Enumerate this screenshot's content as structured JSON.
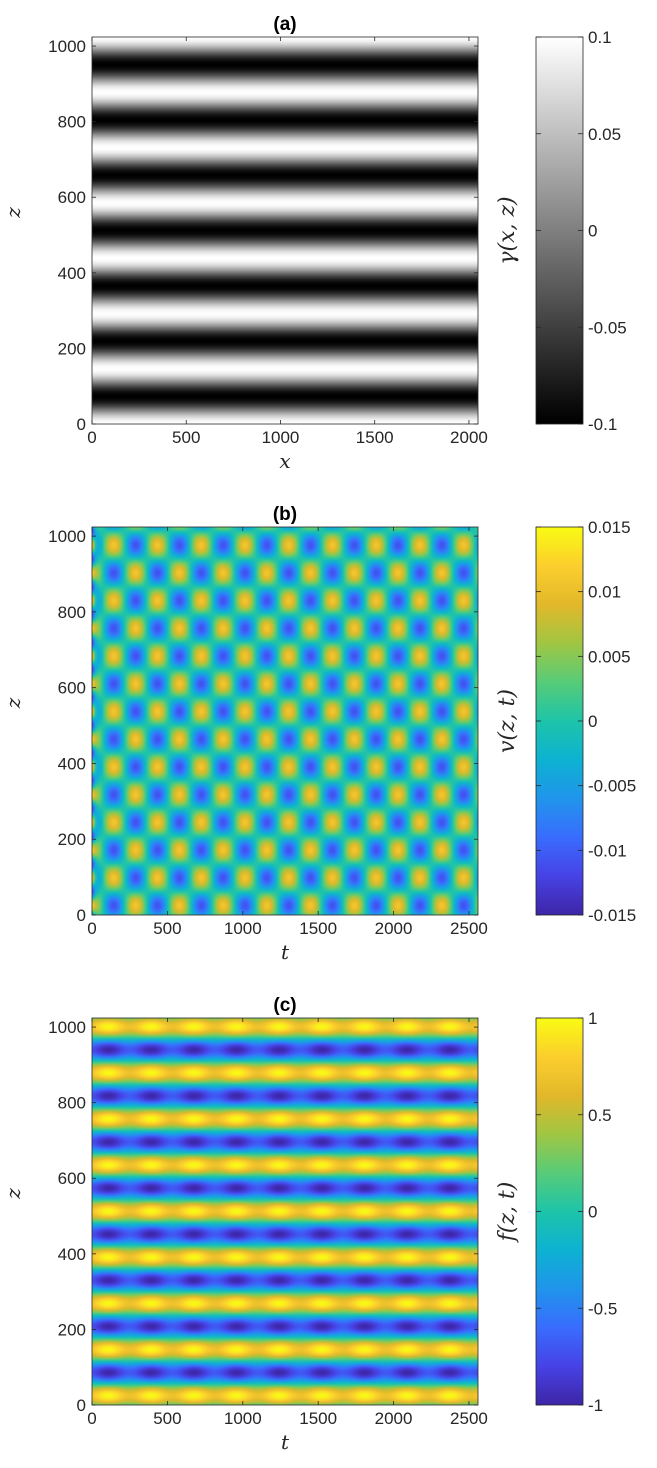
{
  "chart_data": [
    {
      "type": "heatmap",
      "title": "(a)",
      "xlabel": "x",
      "ylabel": "z",
      "colorbar_label": "γ(x, z)",
      "colormap": "gray",
      "xlim": [
        0,
        2048
      ],
      "ylim": [
        0,
        1024
      ],
      "xticks": [
        0,
        500,
        1000,
        1500,
        2000
      ],
      "yticks": [
        0,
        200,
        400,
        600,
        800,
        1000
      ],
      "clim": [
        -0.1,
        0.1
      ],
      "cticks": [
        -0.1,
        -0.05,
        0,
        0.05,
        0.1
      ],
      "cticklabels": [
        "-0.1",
        "-0.05",
        "0",
        "0.05",
        "0.1"
      ],
      "field": {
        "description_formula": "gamma = A*cos(2*pi*z/period_z + phase)",
        "amplitude": 0.1,
        "period_z": 146.3,
        "phase": 0,
        "varies_with_x": false
      }
    },
    {
      "type": "heatmap",
      "title": "(b)",
      "xlabel": "t",
      "ylabel": "z",
      "colorbar_label": "v(z, t)",
      "colormap": "parula",
      "xlim": [
        0,
        2560
      ],
      "ylim": [
        0,
        1024
      ],
      "xticks": [
        0,
        500,
        1000,
        1500,
        2000,
        2500
      ],
      "yticks": [
        0,
        200,
        400,
        600,
        800,
        1000
      ],
      "clim": [
        -0.015,
        0.015
      ],
      "cticks": [
        -0.015,
        -0.01,
        -0.005,
        0,
        0.005,
        0.01,
        0.015
      ],
      "cticklabels": [
        "-0.015",
        "-0.01",
        "-0.005",
        "0",
        "0.005",
        "0.01",
        "0.015"
      ],
      "field": {
        "description_formula": "v = A*sin(2*pi*t/period_t)*cos(2*pi*z/period_z) (checkerboard)",
        "amplitude": 0.011,
        "period_t": 290,
        "period_z": 146.3,
        "edge_amplitude": 0.0145
      }
    },
    {
      "type": "heatmap",
      "title": "(c)",
      "xlabel": "t",
      "ylabel": "z",
      "colorbar_label": "f(z, t)",
      "colormap": "parula",
      "xlim": [
        0,
        2560
      ],
      "ylim": [
        0,
        1024
      ],
      "xticks": [
        0,
        500,
        1000,
        1500,
        2000,
        2500
      ],
      "yticks": [
        0,
        200,
        400,
        600,
        800,
        1000
      ],
      "clim": [
        -1,
        1
      ],
      "cticks": [
        -1,
        -0.5,
        0,
        0.5,
        1
      ],
      "cticklabels": [
        "-1",
        "-0.5",
        "0",
        "0.5",
        "1"
      ],
      "field": {
        "description_formula": "f = cos(2*pi*z/period_z)*(0.85 + 0.15*cos(2*pi*t/period_t))",
        "amplitude": 1,
        "period_z": 122,
        "period_t": 283,
        "modulation": 0.15
      }
    }
  ]
}
